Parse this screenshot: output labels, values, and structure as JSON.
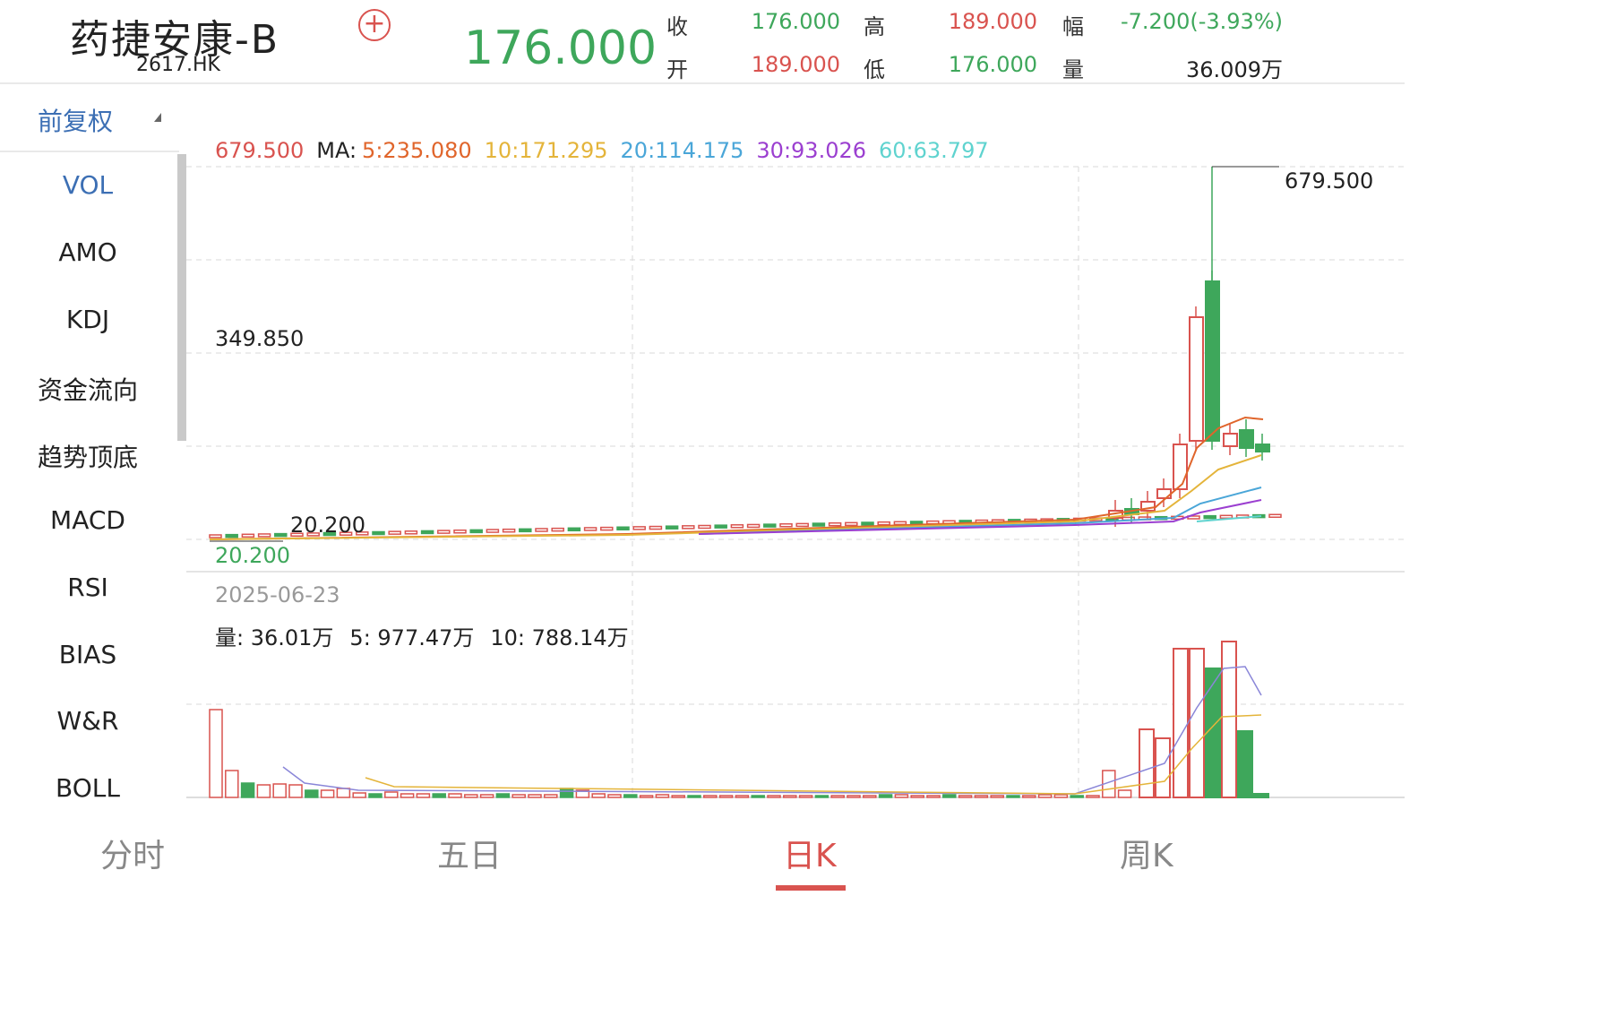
{
  "header": {
    "stock_name": "药捷安康-B",
    "stock_code": "2617.HK",
    "add_icon": "plus-circle-icon",
    "price": "176.000",
    "quote": {
      "close_label": "收",
      "close": "176.000",
      "open_label": "开",
      "open": "189.000",
      "high_label": "高",
      "high": "189.000",
      "low_label": "低",
      "low": "176.000",
      "change_label": "幅",
      "change": "-7.200(-3.93%)",
      "volume_label": "量",
      "volume": "36.009万"
    }
  },
  "adjust": {
    "label": "前复权",
    "icon": "triangle-down-icon"
  },
  "indicators": [
    "VOL",
    "AMO",
    "KDJ",
    "资金流向",
    "趋势顶底",
    "MACD",
    "RSI",
    "BIAS",
    "W&R",
    "BOLL"
  ],
  "active_indicator": "VOL",
  "ma_legend": {
    "last": "679.500",
    "label": "MA:",
    "ma5": "5:235.080",
    "ma10": "10:171.295",
    "ma20": "20:114.175",
    "ma30": "30:93.026",
    "ma60": "60:63.797"
  },
  "price_chart": {
    "max_label": "679.500",
    "mid_label": "349.850",
    "min_in_chart_label": "20.200",
    "bottom_label": "20.200"
  },
  "volume_panel": {
    "date": "2025-06-23",
    "vol": "量: 36.01万",
    "ma5": "5: 977.47万",
    "ma10": "10: 788.14万"
  },
  "tabs": [
    "分时",
    "五日",
    "日K",
    "周K"
  ],
  "active_tab": "日K",
  "colors": {
    "up": "#d9534f",
    "down": "#3ea75b",
    "ma5": "#e0652b",
    "ma10": "#e4b43a",
    "ma20": "#4aa6d8",
    "ma30": "#9b3fd0",
    "ma60": "#5fd3cf",
    "accent": "#3c6fb4"
  },
  "chart_data": {
    "type": "candlestick",
    "y_range": [
      20.2,
      679.5
    ],
    "x_range": [
      "",
      "2025-06-23"
    ],
    "volume_unit": "万",
    "last_close": 176.0,
    "last_high": 189.0,
    "last_low": 176.0,
    "ma": {
      "ma5": 235.08,
      "ma10": 171.295,
      "ma20": 114.175,
      "ma30": 93.026,
      "ma60": 63.797
    },
    "last_volume": 36.01,
    "vol_ma5": 977.47,
    "vol_ma10": 788.14
  }
}
